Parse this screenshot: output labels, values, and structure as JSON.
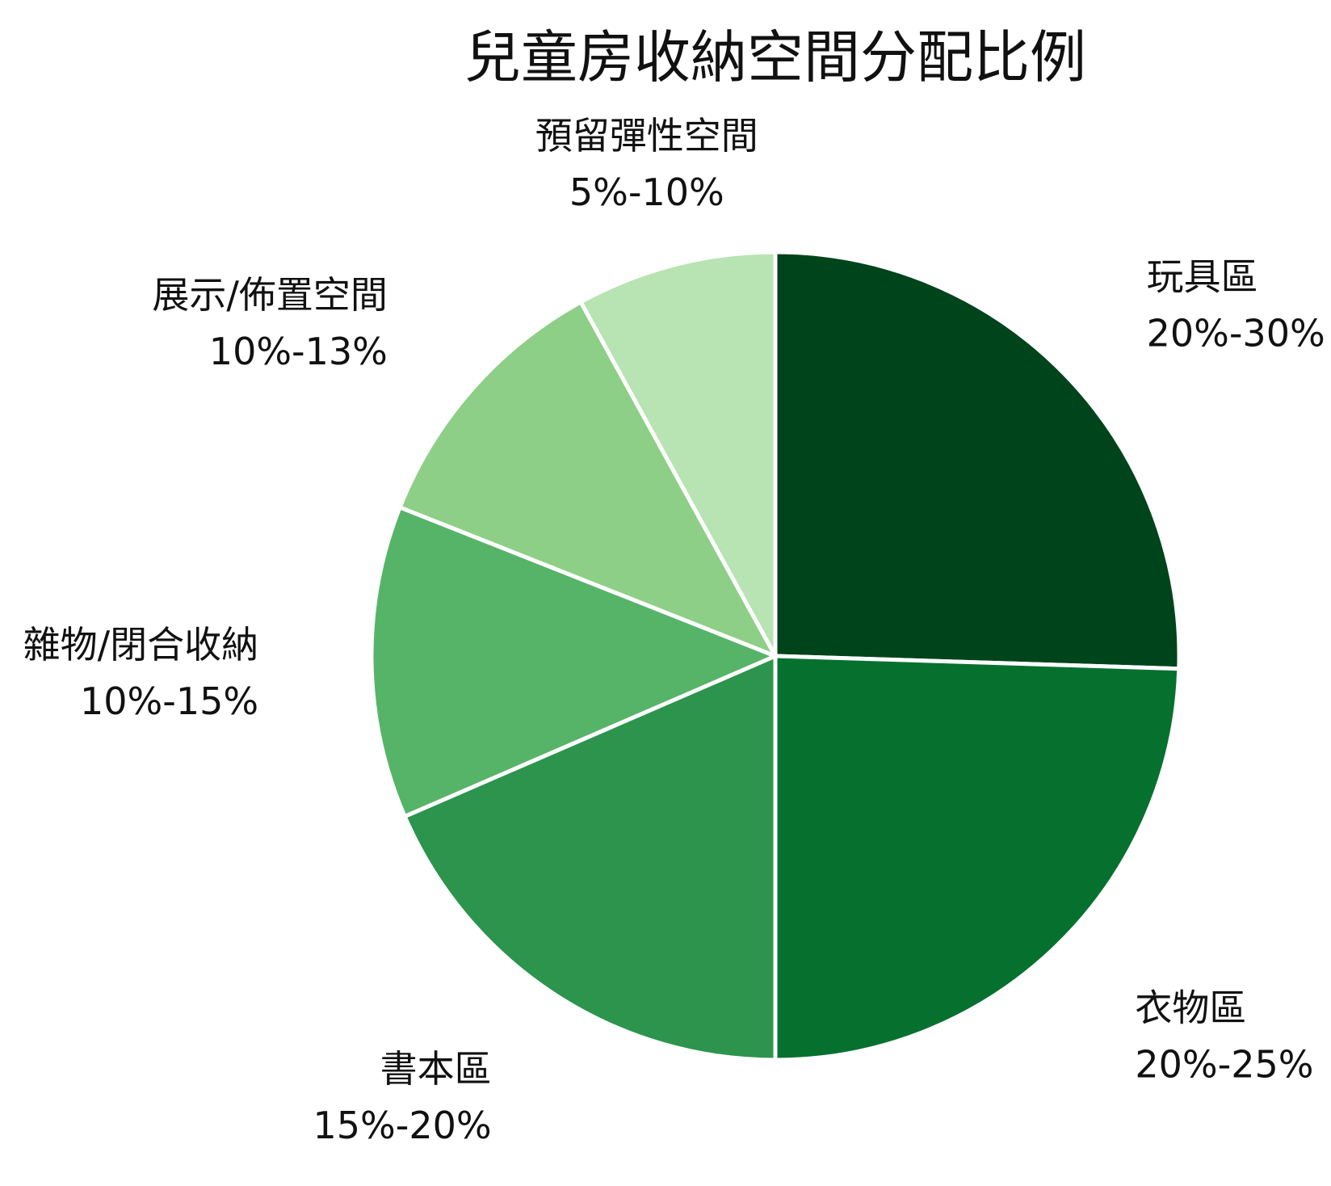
{
  "chart_data": {
    "type": "pie",
    "title": "兒童房收納空間分配比例",
    "start_angle_deg": 0,
    "direction": "clockwise",
    "legend": "none",
    "slices": [
      {
        "name": "玩具區",
        "range_label": "20%-30%",
        "value": 25.5,
        "color": "#00441b"
      },
      {
        "name": "衣物區",
        "range_label": "20%-25%",
        "value": 24.5,
        "color": "#06712f"
      },
      {
        "name": "書本區",
        "range_label": "15%-20%",
        "value": 18.5,
        "color": "#2c944c"
      },
      {
        "name": "雜物/閉合收納",
        "range_label": "10%-15%",
        "value": 12.5,
        "color": "#56b468"
      },
      {
        "name": "展示/佈置空間",
        "range_label": "10%-13%",
        "value": 11,
        "color": "#8ecf87"
      },
      {
        "name": "預留彈性空間",
        "range_label": "5%-10%",
        "value": 8,
        "color": "#b8e3b2"
      }
    ]
  }
}
